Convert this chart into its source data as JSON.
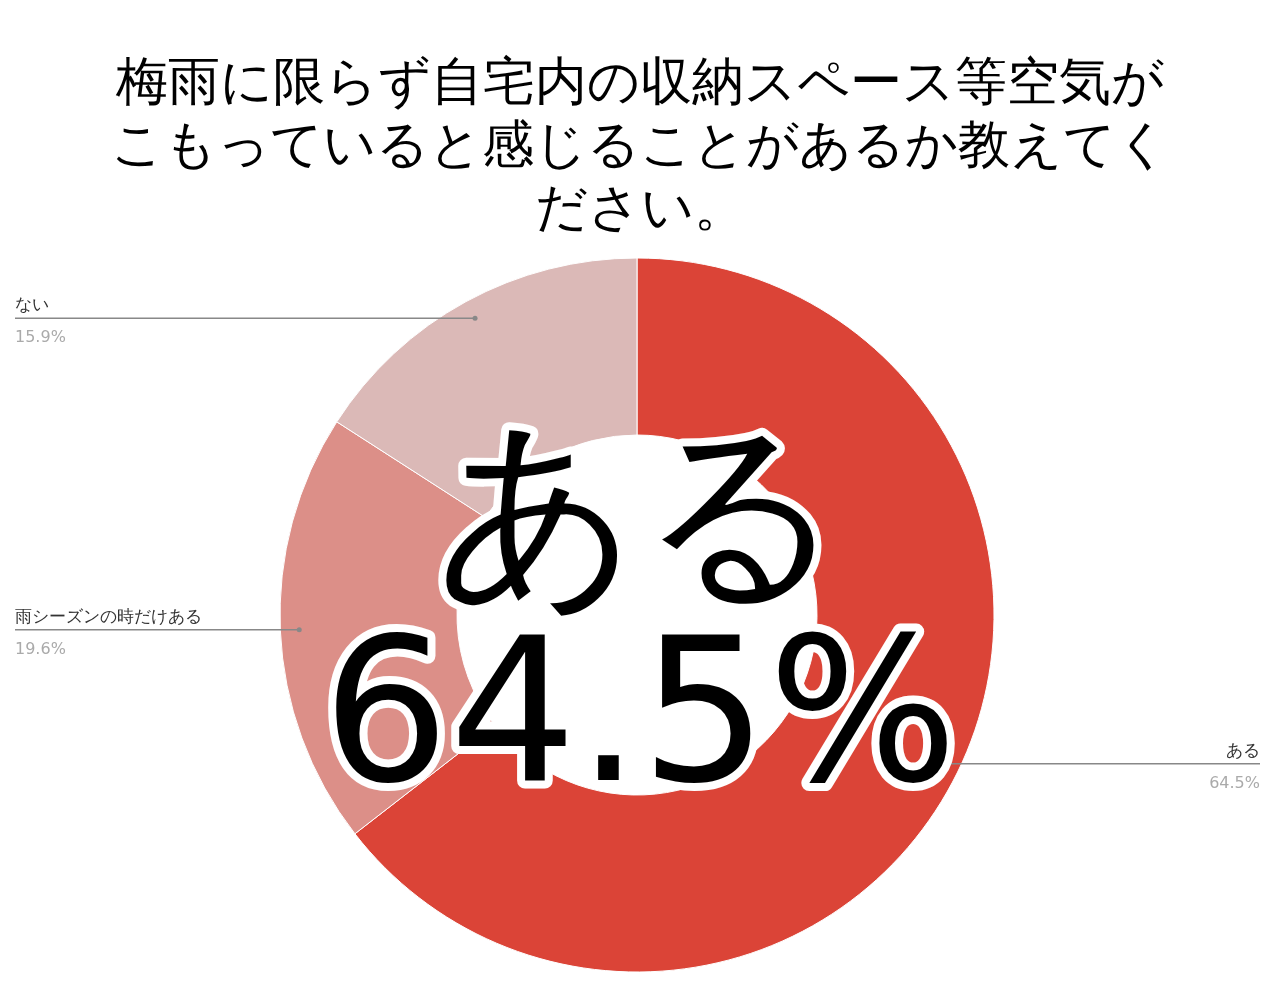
{
  "chart_data": {
    "type": "donut",
    "title": "梅雨に限らず自宅内の収納スペース等空気がこもっていると感じることがあるか教えてください。",
    "categories": [
      "ある",
      "雨シーズンの時だけある",
      "ない"
    ],
    "values": [
      64.5,
      19.6,
      15.9
    ],
    "colors": [
      "#db4437",
      "#dc8f88",
      "#dbb9b7"
    ],
    "value_labels": [
      "64.5%",
      "19.6%",
      "15.9%"
    ],
    "annotations": [
      "ある\n64.5%"
    ]
  }
}
